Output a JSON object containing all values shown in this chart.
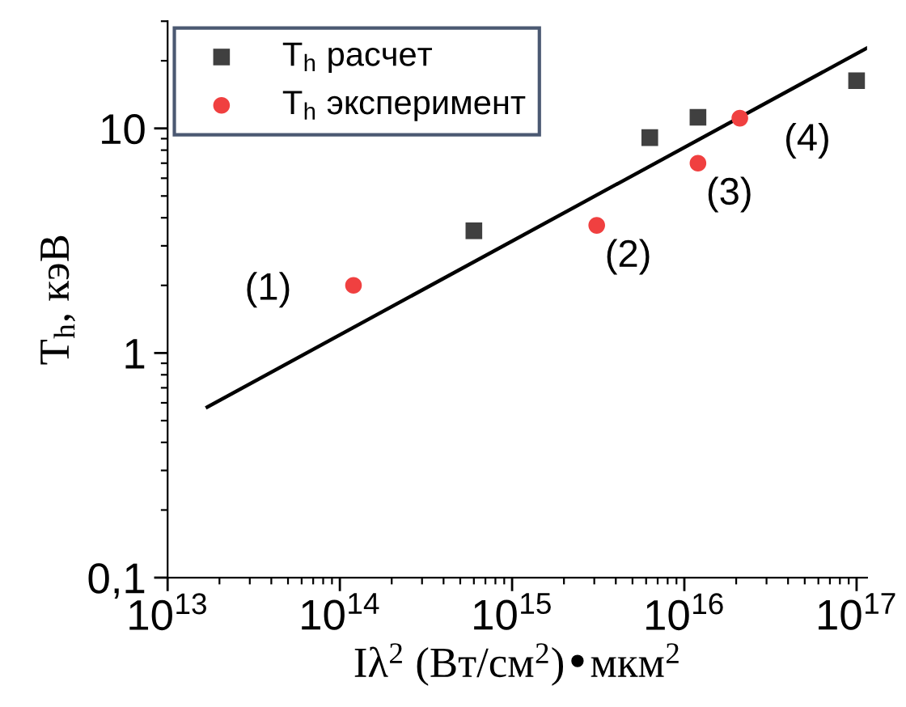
{
  "chart_data": {
    "type": "scatter",
    "xlabel": "Iλ$^{2}$ (Вт/см$^{2}$)•мкм$^{2}$",
    "ylabel": "T$_{h}$, кэВ",
    "log": "xy",
    "legend": "top left",
    "grid": false,
    "xlim": [
      10000000000000.0,
      1.15e+17
    ],
    "ylim": [
      0.1,
      30
    ],
    "xticks": [
      {
        "value": 10000000000000.0,
        "label": "10$^{13}$"
      },
      {
        "value": 100000000000000.0,
        "label": "10$^{14}$"
      },
      {
        "value": 1000000000000000.0,
        "label": "10$^{15}$"
      },
      {
        "value": 1e+16,
        "label": "10$^{16}$"
      },
      {
        "value": 1e+17,
        "label": "10$^{17}$"
      }
    ],
    "yticks": [
      {
        "value": 0.1,
        "label": "0,1"
      },
      1,
      10
    ],
    "series": [
      {
        "name": "T$_{h}$ расчет",
        "marker": "square",
        "color": "#404040",
        "x": [
          600000000000000.0,
          6300000000000000.0,
          1.2e+16,
          1e+17
        ],
        "values": [
          3.5,
          9.1,
          11.2,
          16.3
        ]
      },
      {
        "name": "T$_{h}$ эксперимент",
        "marker": "circle",
        "color": "#f04040",
        "x": [
          120000000000000.0,
          3100000000000000.0,
          1.2e+16,
          2.1e+16
        ],
        "values": [
          2.0,
          3.7,
          7.0,
          11.1
        ]
      },
      {
        "type": "line",
        "color": "#000000",
        "line_style": "solid",
        "marker": "none",
        "x": [
          17000000000000.0,
          1.15e+17
        ],
        "values": [
          0.575,
          22.8
        ]
      }
    ],
    "annotations": [
      {
        "text": "(1)",
        "x": 120000000000000.0,
        "y": 2.0
      },
      {
        "text": "(2)",
        "x": 3100000000000000.0,
        "y": 3.7
      },
      {
        "text": "(3)",
        "x": 1.2e+16,
        "y": 7.0
      },
      {
        "text": "(4)",
        "x": 2.1e+16,
        "y": 11.1
      }
    ]
  }
}
